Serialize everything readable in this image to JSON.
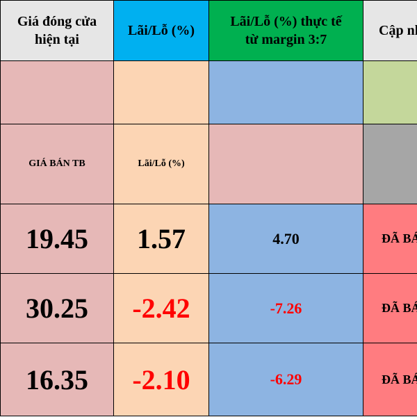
{
  "headers": {
    "close_price": [
      "Giá đóng cửa",
      "hiện tại"
    ],
    "pl_pct": "Lãi/Lỗ (%)",
    "pl_margin": [
      "Lãi/Lỗ (%) thực tế",
      "từ margin 3:7"
    ],
    "update": "Cập nhật"
  },
  "subheaders": {
    "avg_sell": "GIÁ BÁN TB",
    "pl_pct": "Lãi/Lỗ (%)"
  },
  "rows": [
    {
      "price": "19.45",
      "pl": "1.57",
      "pl_margin": "4.70",
      "status": "ĐÃ BÁN",
      "negative": false
    },
    {
      "price": "30.25",
      "pl": "-2.42",
      "pl_margin": "-7.26",
      "status": "ĐÃ BÁN",
      "negative": true
    },
    {
      "price": "16.35",
      "pl": "-2.10",
      "pl_margin": "-6.29",
      "status": "ĐÃ BÁN",
      "negative": true
    }
  ],
  "colors": {
    "header_gray": "#e6e6e6",
    "header_blue": "#00b0f0",
    "header_green": "#00b050",
    "pink": "#e6b8b7",
    "peach": "#fcd5b4",
    "blue": "#8db4e2",
    "green": "#c4d79b",
    "gray": "#a6a6a6",
    "status_red": "#ff7c80",
    "negative_text": "#ff0000"
  }
}
